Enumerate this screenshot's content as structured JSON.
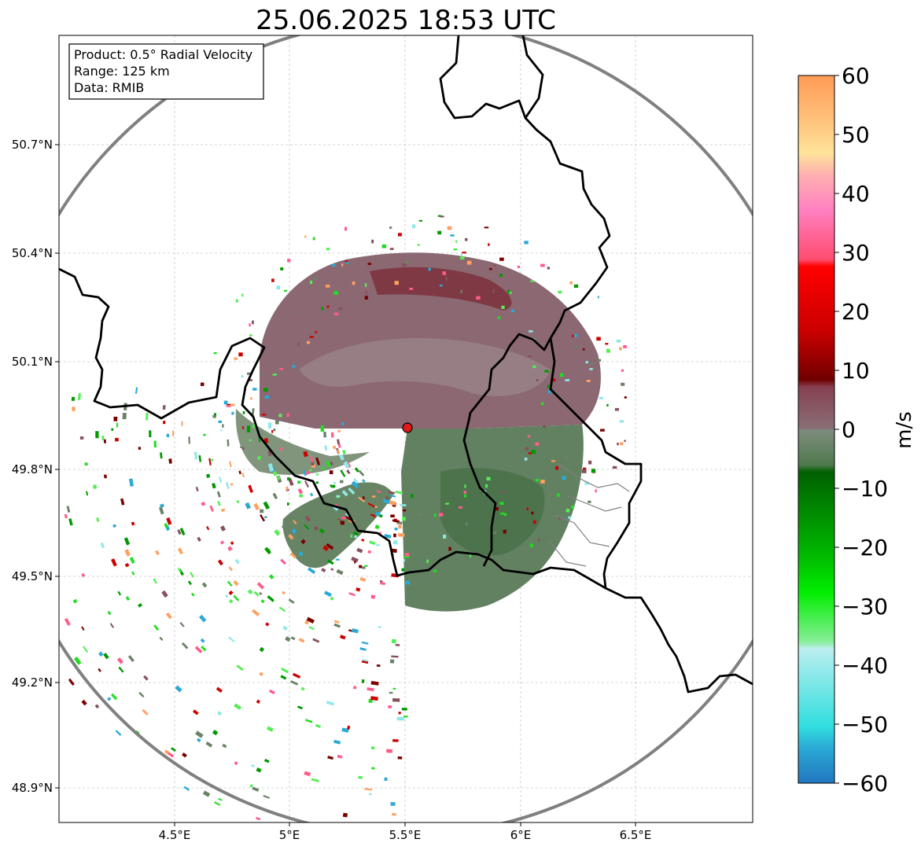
{
  "title": "25.06.2025 18:53 UTC",
  "info_box": {
    "product": "Product: 0.5° Radial Velocity",
    "range": "Range: 125 km",
    "data": "Data: RMIB"
  },
  "axes": {
    "x_ticks": [
      "4.5°E",
      "5°E",
      "5.5°E",
      "6°E",
      "6.5°E"
    ],
    "y_ticks": [
      "50.7°N",
      "50.4°N",
      "50.1°N",
      "49.8°N",
      "49.5°N",
      "49.2°N",
      "48.9°N"
    ],
    "grid": true
  },
  "radar_site": {
    "lon": 5.5,
    "lat": 49.914,
    "color": "#e31a1c"
  },
  "range_ring_color": "#808080",
  "colorbar": {
    "label": "m/s",
    "min": -60,
    "max": 60,
    "ticks": [
      "60",
      "50",
      "40",
      "30",
      "20",
      "10",
      "0",
      "−10",
      "−20",
      "−30",
      "−40",
      "−50",
      "−60"
    ]
  },
  "colors": {
    "receding_strong": "#7a0000",
    "receding_weak": "#8a6068",
    "approaching_weak": "#5a7a5a",
    "approaching_strong": "#009900",
    "border": "#000000",
    "admin_border": "#808080"
  }
}
